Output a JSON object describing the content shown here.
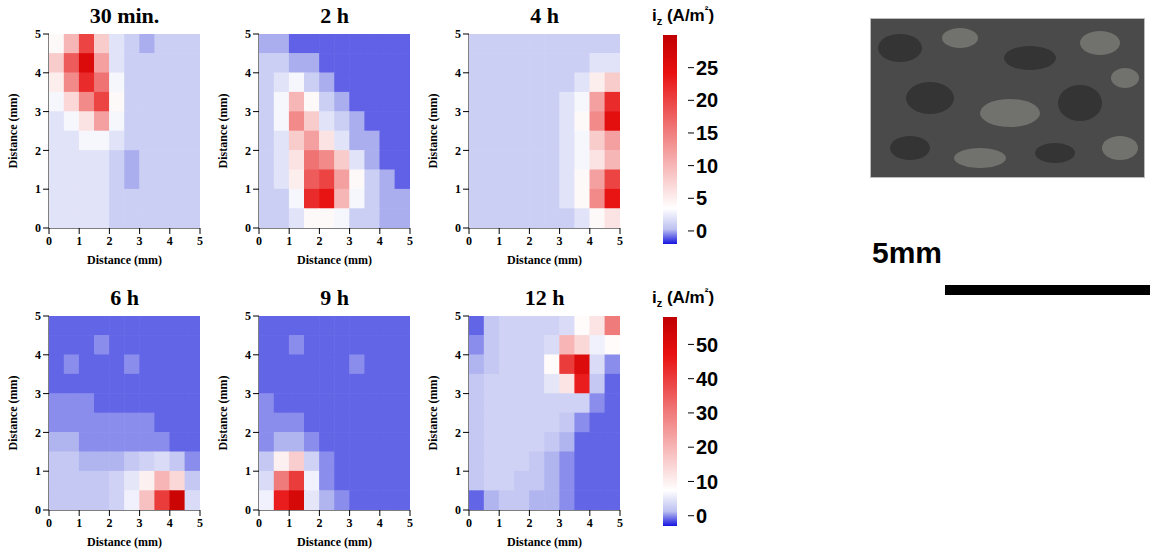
{
  "chart_data": [
    {
      "type": "heatmap",
      "title": "30 min.",
      "x_label": "Distance (mm)",
      "y_label": "Distance (mm)",
      "xlim": [
        0,
        5
      ],
      "ylim": [
        0,
        5
      ],
      "xticks": [
        0,
        1,
        2,
        3,
        4,
        5
      ],
      "yticks": [
        0,
        1,
        2,
        3,
        4,
        5
      ],
      "color_range": [
        -2,
        30
      ],
      "color_ticks": [
        0,
        5,
        10,
        15,
        20,
        25
      ],
      "x": [
        0.25,
        0.75,
        1.25,
        1.75,
        2.25,
        2.75,
        3.25,
        3.75,
        4.25,
        4.75
      ],
      "y": [
        4.75,
        4.25,
        3.75,
        3.25,
        2.75,
        2.25,
        1.75,
        1.25,
        0.75,
        0.25
      ],
      "values": [
        [
          4,
          10,
          20,
          8,
          2,
          1,
          0,
          1,
          1,
          1
        ],
        [
          8,
          18,
          26,
          12,
          2,
          1,
          1,
          1,
          1,
          1
        ],
        [
          5,
          14,
          22,
          16,
          3,
          1,
          1,
          1,
          1,
          1
        ],
        [
          3,
          7,
          14,
          20,
          4,
          1,
          1,
          1,
          1,
          1
        ],
        [
          2,
          3,
          6,
          12,
          3,
          1,
          1,
          1,
          1,
          1
        ],
        [
          2,
          2,
          3,
          3,
          2,
          1,
          1,
          1,
          1,
          1
        ],
        [
          2,
          2,
          2,
          2,
          1,
          0,
          1,
          1,
          1,
          1
        ],
        [
          2,
          2,
          2,
          2,
          1,
          0,
          1,
          1,
          1,
          1
        ],
        [
          2,
          2,
          2,
          2,
          1,
          1,
          1,
          1,
          1,
          1
        ],
        [
          2,
          2,
          2,
          2,
          1,
          1,
          1,
          1,
          1,
          1
        ]
      ]
    },
    {
      "type": "heatmap",
      "title": "2 h",
      "x_label": "Distance (mm)",
      "y_label": "Distance (mm)",
      "xlim": [
        0,
        5
      ],
      "ylim": [
        0,
        5
      ],
      "xticks": [
        0,
        1,
        2,
        3,
        4,
        5
      ],
      "yticks": [
        0,
        1,
        2,
        3,
        4,
        5
      ],
      "color_range": [
        -2,
        30
      ],
      "color_ticks": [
        0,
        5,
        10,
        15,
        20,
        25
      ],
      "x": [
        0.25,
        0.75,
        1.25,
        1.75,
        2.25,
        2.75,
        3.25,
        3.75,
        4.25,
        4.75
      ],
      "y": [
        4.75,
        4.25,
        3.75,
        3.25,
        2.75,
        2.25,
        1.75,
        1.25,
        0.75,
        0.25
      ],
      "values": [
        [
          0,
          0,
          -1,
          -1,
          -1,
          -1,
          -1,
          -1,
          -1,
          -1
        ],
        [
          1,
          1,
          0,
          0,
          -1,
          -1,
          -1,
          -1,
          -1,
          -1
        ],
        [
          1,
          2,
          3,
          1,
          0,
          -1,
          -1,
          -1,
          -1,
          -1
        ],
        [
          1,
          3,
          10,
          4,
          1,
          0,
          -1,
          -1,
          -1,
          -1
        ],
        [
          1,
          3,
          14,
          8,
          2,
          1,
          0,
          -1,
          -1,
          -1
        ],
        [
          1,
          2,
          8,
          12,
          6,
          2,
          0,
          0,
          -1,
          -1
        ],
        [
          1,
          2,
          6,
          16,
          14,
          8,
          2,
          0,
          -1,
          -1
        ],
        [
          1,
          2,
          5,
          18,
          20,
          12,
          4,
          1,
          0,
          -1
        ],
        [
          1,
          1,
          3,
          22,
          24,
          10,
          3,
          1,
          0,
          0
        ],
        [
          1,
          1,
          2,
          4,
          4,
          3,
          1,
          1,
          0,
          0
        ]
      ]
    },
    {
      "type": "heatmap",
      "title": "4 h",
      "x_label": "Distance (mm)",
      "y_label": "Distance (mm)",
      "xlim": [
        0,
        5
      ],
      "ylim": [
        0,
        5
      ],
      "xticks": [
        0,
        1,
        2,
        3,
        4,
        5
      ],
      "yticks": [
        0,
        1,
        2,
        3,
        4,
        5
      ],
      "color_range": [
        -2,
        30
      ],
      "color_ticks": [
        0,
        5,
        10,
        15,
        20,
        25
      ],
      "x": [
        0.25,
        0.75,
        1.25,
        1.75,
        2.25,
        2.75,
        3.25,
        3.75,
        4.25,
        4.75
      ],
      "y": [
        4.75,
        4.25,
        3.75,
        3.25,
        2.75,
        2.25,
        1.75,
        1.25,
        0.75,
        0.25
      ],
      "values": [
        [
          1,
          1,
          1,
          1,
          1,
          1,
          1,
          1,
          1,
          1
        ],
        [
          1,
          1,
          1,
          1,
          1,
          1,
          1,
          1,
          2,
          2
        ],
        [
          1,
          1,
          1,
          1,
          1,
          1,
          1,
          2,
          5,
          8
        ],
        [
          1,
          1,
          1,
          1,
          1,
          1,
          2,
          3,
          12,
          22
        ],
        [
          1,
          1,
          1,
          1,
          1,
          1,
          2,
          4,
          14,
          25
        ],
        [
          1,
          1,
          1,
          1,
          1,
          1,
          2,
          3,
          8,
          12
        ],
        [
          1,
          1,
          1,
          1,
          1,
          1,
          2,
          3,
          6,
          10
        ],
        [
          1,
          1,
          1,
          1,
          1,
          1,
          2,
          4,
          12,
          20
        ],
        [
          1,
          1,
          1,
          1,
          1,
          1,
          2,
          4,
          14,
          24
        ],
        [
          1,
          1,
          1,
          1,
          1,
          1,
          1,
          2,
          4,
          6
        ]
      ]
    },
    {
      "type": "heatmap",
      "title": "6 h",
      "x_label": "Distance (mm)",
      "y_label": "Distance (mm)",
      "xlim": [
        0,
        5
      ],
      "ylim": [
        0,
        5
      ],
      "xticks": [
        0,
        1,
        2,
        3,
        4,
        5
      ],
      "yticks": [
        0,
        1,
        2,
        3,
        4,
        5
      ],
      "color_range": [
        -3,
        58
      ],
      "color_ticks": [
        0,
        10,
        20,
        30,
        40,
        50
      ],
      "x": [
        0.25,
        0.75,
        1.25,
        1.75,
        2.25,
        2.75,
        3.25,
        3.75,
        4.25,
        4.75
      ],
      "y": [
        4.75,
        4.25,
        3.75,
        3.25,
        2.75,
        2.25,
        1.75,
        1.25,
        0.75,
        0.25
      ],
      "values": [
        [
          -1,
          -1,
          -1,
          -1,
          -1,
          -1,
          -1,
          -1,
          -1,
          -1
        ],
        [
          -1,
          -1,
          -1,
          0,
          -1,
          -1,
          -1,
          -1,
          -1,
          -1
        ],
        [
          -1,
          0,
          -1,
          -1,
          -1,
          0,
          -1,
          -1,
          -1,
          -1
        ],
        [
          -1,
          -1,
          -1,
          -1,
          -1,
          -1,
          -1,
          -1,
          -1,
          -1
        ],
        [
          0,
          0,
          0,
          -1,
          -1,
          -1,
          -1,
          -1,
          -1,
          -1
        ],
        [
          0,
          0,
          0,
          0,
          0,
          0,
          0,
          -1,
          -1,
          -1
        ],
        [
          1,
          1,
          0,
          0,
          0,
          0,
          0,
          0,
          -1,
          -1
        ],
        [
          2,
          2,
          1,
          1,
          1,
          2,
          3,
          4,
          2,
          0
        ],
        [
          2,
          2,
          2,
          2,
          3,
          5,
          10,
          20,
          14,
          2
        ],
        [
          2,
          2,
          2,
          2,
          3,
          6,
          18,
          40,
          55,
          4
        ]
      ]
    },
    {
      "type": "heatmap",
      "title": "9 h",
      "x_label": "Distance (mm)",
      "y_label": "Distance (mm)",
      "xlim": [
        0,
        5
      ],
      "ylim": [
        0,
        5
      ],
      "xticks": [
        0,
        1,
        2,
        3,
        4,
        5
      ],
      "yticks": [
        0,
        1,
        2,
        3,
        4,
        5
      ],
      "color_range": [
        -3,
        58
      ],
      "color_ticks": [
        0,
        10,
        20,
        30,
        40,
        50
      ],
      "x": [
        0.25,
        0.75,
        1.25,
        1.75,
        2.25,
        2.75,
        3.25,
        3.75,
        4.25,
        4.75
      ],
      "y": [
        4.75,
        4.25,
        3.75,
        3.25,
        2.75,
        2.25,
        1.75,
        1.25,
        0.75,
        0.25
      ],
      "values": [
        [
          -1,
          -1,
          -1,
          -1,
          -1,
          -1,
          -1,
          -1,
          -1,
          -1
        ],
        [
          -1,
          -1,
          0,
          -1,
          -1,
          -1,
          -1,
          -1,
          -1,
          -1
        ],
        [
          -1,
          -1,
          -1,
          -1,
          -1,
          -1,
          0,
          -1,
          -1,
          -1
        ],
        [
          -1,
          -1,
          -1,
          -1,
          -1,
          -1,
          -1,
          -1,
          -1,
          -1
        ],
        [
          0,
          -1,
          -1,
          -1,
          -1,
          -1,
          -1,
          -1,
          -1,
          -1
        ],
        [
          0,
          0,
          0,
          -1,
          -1,
          -1,
          -1,
          -1,
          -1,
          -1
        ],
        [
          0,
          1,
          1,
          0,
          -1,
          -1,
          -1,
          -1,
          -1,
          -1
        ],
        [
          2,
          10,
          16,
          3,
          0,
          -1,
          -1,
          -1,
          -1,
          -1
        ],
        [
          4,
          30,
          40,
          6,
          0,
          -1,
          -1,
          -1,
          -1,
          -1
        ],
        [
          6,
          45,
          52,
          5,
          1,
          0,
          -1,
          -1,
          -1,
          -1
        ]
      ]
    },
    {
      "type": "heatmap",
      "title": "12 h",
      "x_label": "Distance (mm)",
      "y_label": "Distance (mm)",
      "xlim": [
        0,
        5
      ],
      "ylim": [
        0,
        5
      ],
      "xticks": [
        0,
        1,
        2,
        3,
        4,
        5
      ],
      "yticks": [
        0,
        1,
        2,
        3,
        4,
        5
      ],
      "color_range": [
        -3,
        58
      ],
      "color_ticks": [
        0,
        10,
        20,
        30,
        40,
        50
      ],
      "x": [
        0.25,
        0.75,
        1.25,
        1.75,
        2.25,
        2.75,
        3.25,
        3.75,
        4.25,
        4.75
      ],
      "y": [
        4.75,
        4.25,
        3.75,
        3.25,
        2.75,
        2.25,
        1.75,
        1.25,
        0.75,
        0.25
      ],
      "values": [
        [
          -1,
          2,
          3,
          3,
          3,
          3,
          4,
          8,
          12,
          30
        ],
        [
          0,
          2,
          3,
          3,
          3,
          4,
          20,
          14,
          6,
          8
        ],
        [
          1,
          2,
          3,
          3,
          3,
          8,
          40,
          50,
          4,
          0
        ],
        [
          2,
          3,
          3,
          3,
          3,
          5,
          12,
          45,
          2,
          -1
        ],
        [
          2,
          3,
          3,
          3,
          3,
          3,
          3,
          3,
          0,
          -1
        ],
        [
          2,
          3,
          3,
          3,
          3,
          3,
          2,
          0,
          -1,
          -1
        ],
        [
          2,
          3,
          3,
          3,
          3,
          2,
          1,
          -1,
          -1,
          -1
        ],
        [
          2,
          3,
          3,
          3,
          2,
          1,
          0,
          -1,
          -1,
          -1
        ],
        [
          2,
          3,
          3,
          2,
          2,
          1,
          0,
          -1,
          -1,
          -1
        ],
        [
          -1,
          1,
          2,
          2,
          1,
          1,
          0,
          -1,
          -1,
          -1
        ]
      ]
    }
  ],
  "colorbars": [
    {
      "label": "iz (A/m²)",
      "range": [
        -2,
        30
      ],
      "ticks": [
        0,
        5,
        10,
        15,
        20,
        25
      ]
    },
    {
      "label": "iz (A/m²)",
      "range": [
        -3,
        58
      ],
      "ticks": [
        0,
        10,
        20,
        30,
        40,
        50
      ]
    }
  ],
  "photo": {
    "scale_label": "5mm"
  }
}
